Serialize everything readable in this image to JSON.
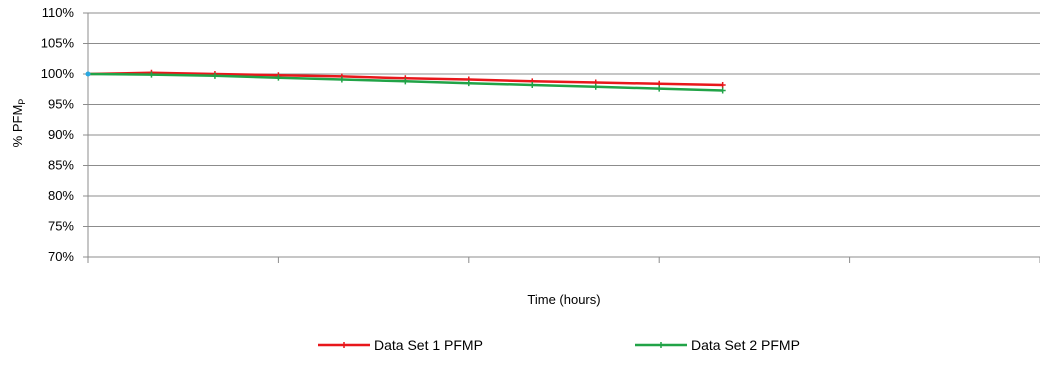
{
  "chart_data": {
    "type": "line",
    "title": "",
    "xlabel": "Time (hours)",
    "ylabel": "% PFM",
    "ylabel_subscript": "P",
    "ylim": [
      70,
      110
    ],
    "y_ticks": [
      "70%",
      "75%",
      "80%",
      "85%",
      "90%",
      "95%",
      "100%",
      "105%",
      "110%"
    ],
    "y_tick_values": [
      70,
      75,
      80,
      85,
      90,
      95,
      100,
      105,
      110
    ],
    "x_category_count": 5,
    "x_tick_labels": [],
    "grid": "horizontal",
    "legend_position": "bottom",
    "series": [
      {
        "name": "Data Set 1 PFMP",
        "color": "#e8171b",
        "values": [
          100.0,
          100.2,
          100.0,
          99.8,
          99.6,
          99.3,
          99.1,
          98.8,
          98.6,
          98.4,
          98.2
        ]
      },
      {
        "name": "Data Set 2 PFMP",
        "color": "#21a347",
        "values": [
          100.0,
          99.9,
          99.7,
          99.4,
          99.1,
          98.8,
          98.5,
          98.2,
          97.9,
          97.6,
          97.3
        ]
      }
    ],
    "start_marker_color": "#29a8e0"
  }
}
